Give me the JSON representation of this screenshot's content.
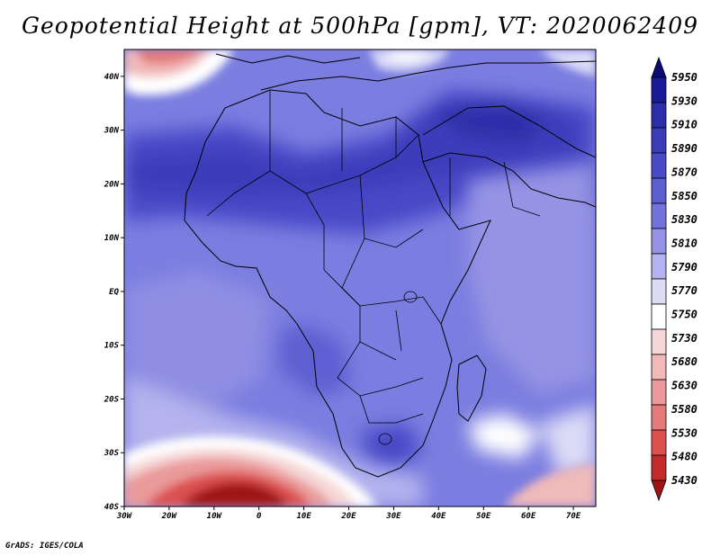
{
  "title": "Geopotential Height at 500hPa [gpm], VT: 2020062409",
  "credit": "GrADS: IGES/COLA",
  "map": {
    "lat_ticks": [
      {
        "value": 40,
        "label": "40N"
      },
      {
        "value": 30,
        "label": "30N"
      },
      {
        "value": 20,
        "label": "20N"
      },
      {
        "value": 10,
        "label": "10N"
      },
      {
        "value": 0,
        "label": "EQ"
      },
      {
        "value": -10,
        "label": "10S"
      },
      {
        "value": -20,
        "label": "20S"
      },
      {
        "value": -30,
        "label": "30S"
      },
      {
        "value": -40,
        "label": "40S"
      }
    ],
    "lon_ticks": [
      {
        "value": -30,
        "label": "30W"
      },
      {
        "value": -20,
        "label": "20W"
      },
      {
        "value": -10,
        "label": "10W"
      },
      {
        "value": 0,
        "label": "0"
      },
      {
        "value": 10,
        "label": "10E"
      },
      {
        "value": 20,
        "label": "20E"
      },
      {
        "value": 30,
        "label": "30E"
      },
      {
        "value": 40,
        "label": "40E"
      },
      {
        "value": 50,
        "label": "50E"
      },
      {
        "value": 60,
        "label": "60E"
      },
      {
        "value": 70,
        "label": "70E"
      }
    ],
    "lon_range": [
      -30,
      75
    ],
    "lat_range": [
      -40,
      45
    ],
    "background_color": "#7b7de0"
  },
  "colorbar": {
    "labels": [
      "5950",
      "5930",
      "5910",
      "5890",
      "5870",
      "5850",
      "5830",
      "5810",
      "5790",
      "5770",
      "5750",
      "5730",
      "5680",
      "5630",
      "5580",
      "5530",
      "5480",
      "5430"
    ],
    "colors": [
      "#0b0b78",
      "#1c1a96",
      "#2e2eaa",
      "#3c3cbb",
      "#4a4ac7",
      "#5e5ed2",
      "#7372dc",
      "#9493e4",
      "#b4b3ee",
      "#dcdcf7",
      "#ffffff",
      "#f6d6d6",
      "#f1baba",
      "#ea9a9a",
      "#e57a7a",
      "#dc5050",
      "#c42c2c",
      "#9e1515"
    ]
  }
}
